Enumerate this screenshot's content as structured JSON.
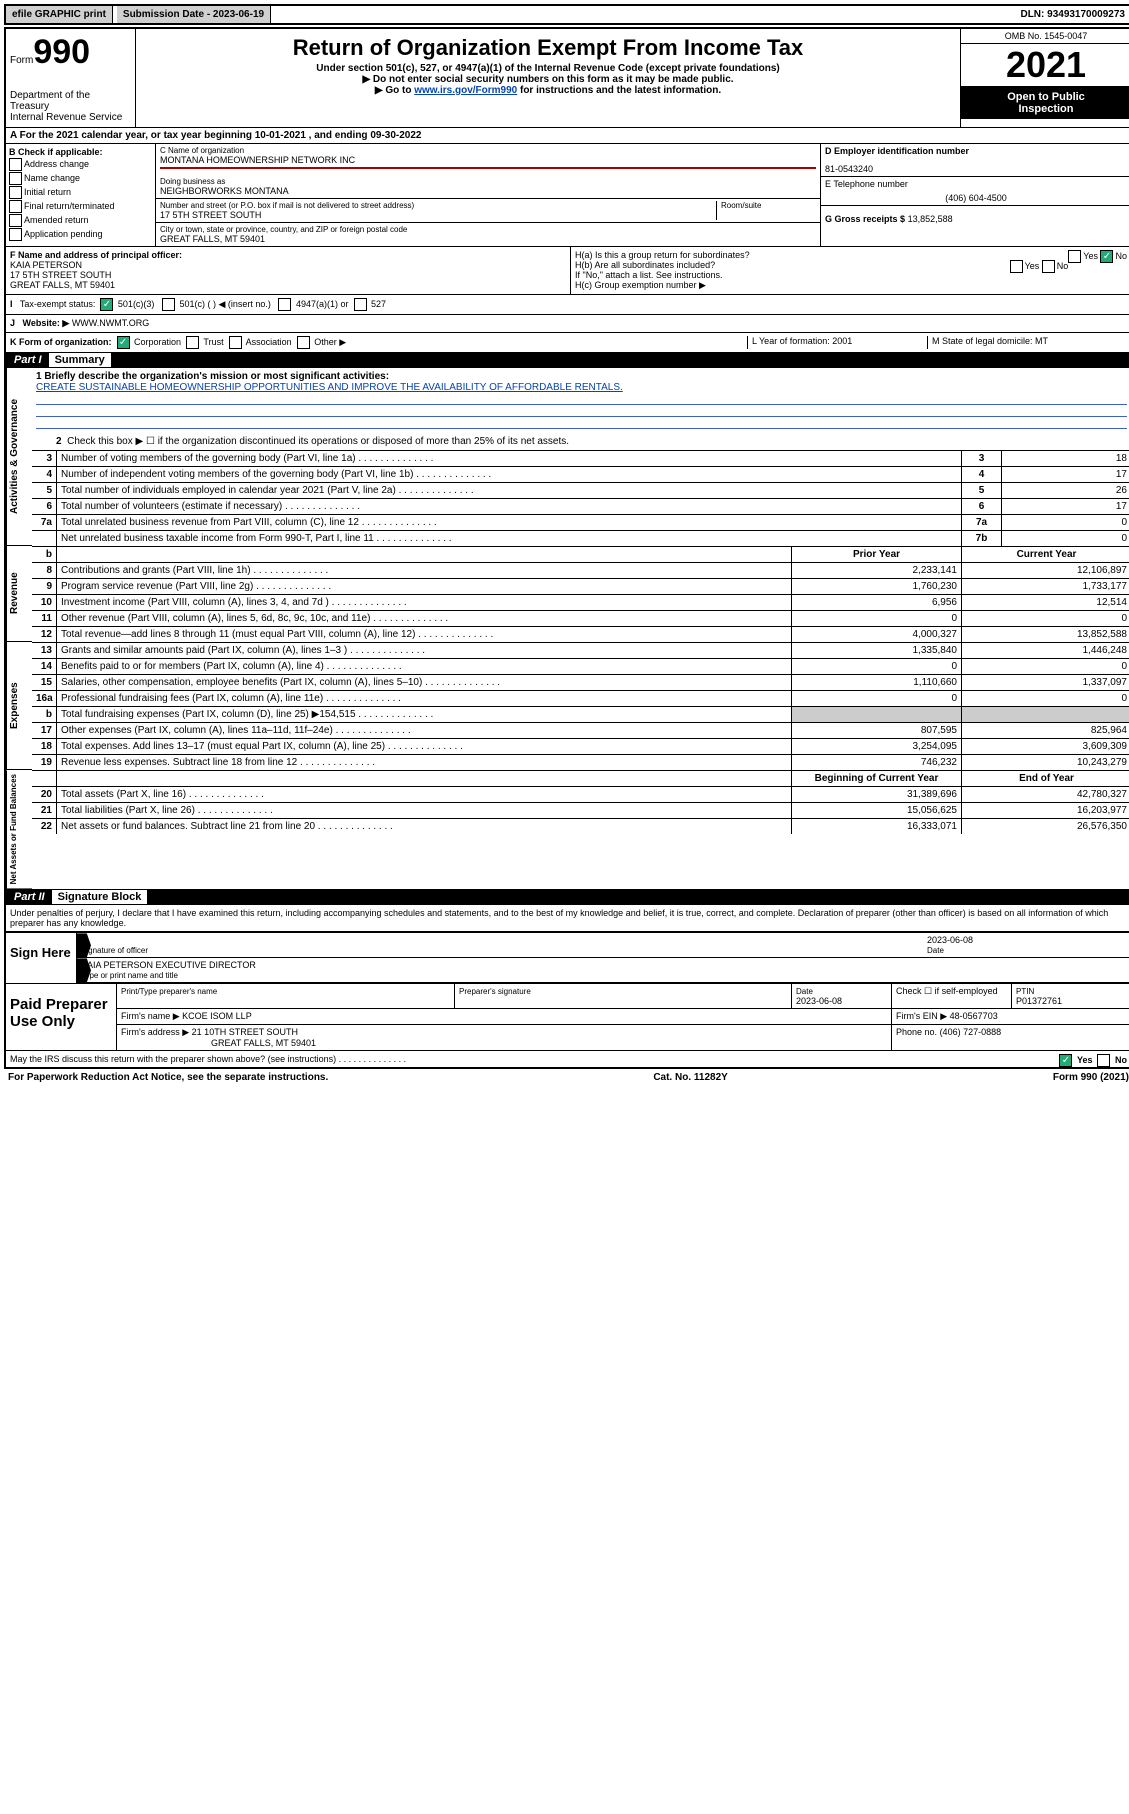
{
  "topbar": {
    "efile": "efile GRAPHIC print",
    "sublabel": "Submission Date - 2023-06-19",
    "dln": "DLN: 93493170009273"
  },
  "header": {
    "form_prefix": "Form",
    "form_no": "990",
    "dept": "Department of the Treasury",
    "irs": "Internal Revenue Service",
    "title": "Return of Organization Exempt From Income Tax",
    "sub1": "Under section 501(c), 527, or 4947(a)(1) of the Internal Revenue Code (except private foundations)",
    "sub2": "▶ Do not enter social security numbers on this form as it may be made public.",
    "sub3_pre": "▶ Go to ",
    "sub3_link": "www.irs.gov/Form990",
    "sub3_post": " for instructions and the latest information.",
    "omb": "OMB No. 1545-0047",
    "year": "2021",
    "inspect1": "Open to Public",
    "inspect2": "Inspection"
  },
  "rowA": "A For the 2021 calendar year, or tax year beginning 10-01-2021    , and ending 09-30-2022",
  "colB": {
    "title": "B Check if applicable:",
    "items": [
      "Address change",
      "Name change",
      "Initial return",
      "Final return/terminated",
      "Amended return",
      "Application pending"
    ]
  },
  "colC": {
    "name_lbl": "C Name of organization",
    "name": "MONTANA HOMEOWNERSHIP NETWORK INC",
    "dba_lbl": "Doing business as",
    "dba": "NEIGHBORWORKS MONTANA",
    "addr_lbl": "Number and street (or P.O. box if mail is not delivered to street address)",
    "room_lbl": "Room/suite",
    "addr": "17 5TH STREET SOUTH",
    "city_lbl": "City or town, state or province, country, and ZIP or foreign postal code",
    "city": "GREAT FALLS, MT  59401"
  },
  "colD": {
    "ein_lbl": "D Employer identification number",
    "ein": "81-0543240",
    "phone_lbl": "E Telephone number",
    "phone": "(406) 604-4500",
    "gross_lbl": "G Gross receipts $",
    "gross": "13,852,588"
  },
  "sec2": {
    "f_lbl": "F Name and address of principal officer:",
    "f_name": "KAIA PETERSON",
    "f_addr1": "17 5TH STREET SOUTH",
    "f_addr2": "GREAT FALLS, MT  59401",
    "ha": "H(a)  Is this a group return for subordinates?",
    "ha_yes": "Yes",
    "ha_no": "No",
    "hb": "H(b)  Are all subordinates included?",
    "hb_note": "If \"No,\" attach a list. See instructions.",
    "hc": "H(c)  Group exemption number ▶",
    "i_lbl": "Tax-exempt status:",
    "i_501c3": "501(c)(3)",
    "i_501c": "501(c) (   ) ◀ (insert no.)",
    "i_4947": "4947(a)(1) or",
    "i_527": "527",
    "j_lbl": "Website: ▶",
    "j_val": "WWW.NWMT.ORG",
    "k_lbl": "K Form of organization:",
    "k_opts": [
      "Corporation",
      "Trust",
      "Association",
      "Other ▶"
    ],
    "l_lbl": "L Year of formation: 2001",
    "m_lbl": "M State of legal domicile: MT"
  },
  "part1": {
    "label": "Part I",
    "title": "Summary"
  },
  "mission_lbl": "1  Briefly describe the organization's mission or most significant activities:",
  "mission": "CREATE SUSTAINABLE HOMEOWNERSHIP OPPORTUNITIES AND IMPROVE THE AVAILABILITY OF AFFORDABLE RENTALS.",
  "line2": "Check this box ▶ ☐  if the organization discontinued its operations or disposed of more than 25% of its net assets.",
  "gov_rows": [
    {
      "n": "3",
      "t": "Number of voting members of the governing body (Part VI, line 1a)",
      "rn": "3",
      "v": "18"
    },
    {
      "n": "4",
      "t": "Number of independent voting members of the governing body (Part VI, line 1b)",
      "rn": "4",
      "v": "17"
    },
    {
      "n": "5",
      "t": "Total number of individuals employed in calendar year 2021 (Part V, line 2a)",
      "rn": "5",
      "v": "26"
    },
    {
      "n": "6",
      "t": "Total number of volunteers (estimate if necessary)",
      "rn": "6",
      "v": "17"
    },
    {
      "n": "7a",
      "t": "Total unrelated business revenue from Part VIII, column (C), line 12",
      "rn": "7a",
      "v": "0"
    },
    {
      "n": "",
      "t": "Net unrelated business taxable income from Form 990-T, Part I, line 11",
      "rn": "7b",
      "v": "0"
    }
  ],
  "col_hdr": {
    "b": "b",
    "py": "Prior Year",
    "cy": "Current Year"
  },
  "rev_rows": [
    {
      "n": "8",
      "t": "Contributions and grants (Part VIII, line 1h)",
      "py": "2,233,141",
      "cy": "12,106,897"
    },
    {
      "n": "9",
      "t": "Program service revenue (Part VIII, line 2g)",
      "py": "1,760,230",
      "cy": "1,733,177"
    },
    {
      "n": "10",
      "t": "Investment income (Part VIII, column (A), lines 3, 4, and 7d )",
      "py": "6,956",
      "cy": "12,514"
    },
    {
      "n": "11",
      "t": "Other revenue (Part VIII, column (A), lines 5, 6d, 8c, 9c, 10c, and 11e)",
      "py": "0",
      "cy": "0"
    },
    {
      "n": "12",
      "t": "Total revenue—add lines 8 through 11 (must equal Part VIII, column (A), line 12)",
      "py": "4,000,327",
      "cy": "13,852,588"
    }
  ],
  "exp_rows": [
    {
      "n": "13",
      "t": "Grants and similar amounts paid (Part IX, column (A), lines 1–3 )",
      "py": "1,335,840",
      "cy": "1,446,248"
    },
    {
      "n": "14",
      "t": "Benefits paid to or for members (Part IX, column (A), line 4)",
      "py": "0",
      "cy": "0"
    },
    {
      "n": "15",
      "t": "Salaries, other compensation, employee benefits (Part IX, column (A), lines 5–10)",
      "py": "1,110,660",
      "cy": "1,337,097"
    },
    {
      "n": "16a",
      "t": "Professional fundraising fees (Part IX, column (A), line 11e)",
      "py": "0",
      "cy": "0"
    },
    {
      "n": "b",
      "t": "Total fundraising expenses (Part IX, column (D), line 25) ▶154,515",
      "py": "",
      "cy": "",
      "gray": true
    },
    {
      "n": "17",
      "t": "Other expenses (Part IX, column (A), lines 11a–11d, 11f–24e)",
      "py": "807,595",
      "cy": "825,964"
    },
    {
      "n": "18",
      "t": "Total expenses. Add lines 13–17 (must equal Part IX, column (A), line 25)",
      "py": "3,254,095",
      "cy": "3,609,309"
    },
    {
      "n": "19",
      "t": "Revenue less expenses. Subtract line 18 from line 12",
      "py": "746,232",
      "cy": "10,243,279"
    }
  ],
  "na_hdr": {
    "py": "Beginning of Current Year",
    "cy": "End of Year"
  },
  "na_rows": [
    {
      "n": "20",
      "t": "Total assets (Part X, line 16)",
      "py": "31,389,696",
      "cy": "42,780,327"
    },
    {
      "n": "21",
      "t": "Total liabilities (Part X, line 26)",
      "py": "15,056,625",
      "cy": "16,203,977"
    },
    {
      "n": "22",
      "t": "Net assets or fund balances. Subtract line 21 from line 20",
      "py": "16,333,071",
      "cy": "26,576,350"
    }
  ],
  "vtabs": {
    "gov": "Activities & Governance",
    "rev": "Revenue",
    "exp": "Expenses",
    "na": "Net Assets or Fund Balances"
  },
  "part2": {
    "label": "Part II",
    "title": "Signature Block"
  },
  "penalty": "Under penalties of perjury, I declare that I have examined this return, including accompanying schedules and statements, and to the best of my knowledge and belief, it is true, correct, and complete. Declaration of preparer (other than officer) is based on all information of which preparer has any knowledge.",
  "sign": {
    "label": "Sign Here",
    "sig_of": "Signature of officer",
    "date_lbl": "Date",
    "date": "2023-06-08",
    "name": "KAIA PETERSON  EXECUTIVE DIRECTOR",
    "name_lbl": "Type or print name and title"
  },
  "prep": {
    "label": "Paid Preparer Use Only",
    "h1": "Print/Type preparer's name",
    "h2": "Preparer's signature",
    "h3": "Date",
    "h3v": "2023-06-08",
    "h4": "Check ☐ if self-employed",
    "h5": "PTIN",
    "h5v": "P01372761",
    "firm_lbl": "Firm's name    ▶",
    "firm": "KCOE ISOM LLP",
    "ein_lbl": "Firm's EIN ▶",
    "ein": "48-0567703",
    "addr_lbl": "Firm's address ▶",
    "addr1": "21 10TH STREET SOUTH",
    "addr2": "GREAT FALLS, MT  59401",
    "phone_lbl": "Phone no.",
    "phone": "(406) 727-0888"
  },
  "discuss": "May the IRS discuss this return with the preparer shown above? (see instructions)",
  "discuss_yes": "Yes",
  "discuss_no": "No",
  "footer": {
    "left": "For Paperwork Reduction Act Notice, see the separate instructions.",
    "mid": "Cat. No. 11282Y",
    "right": "Form 990 (2021)"
  }
}
